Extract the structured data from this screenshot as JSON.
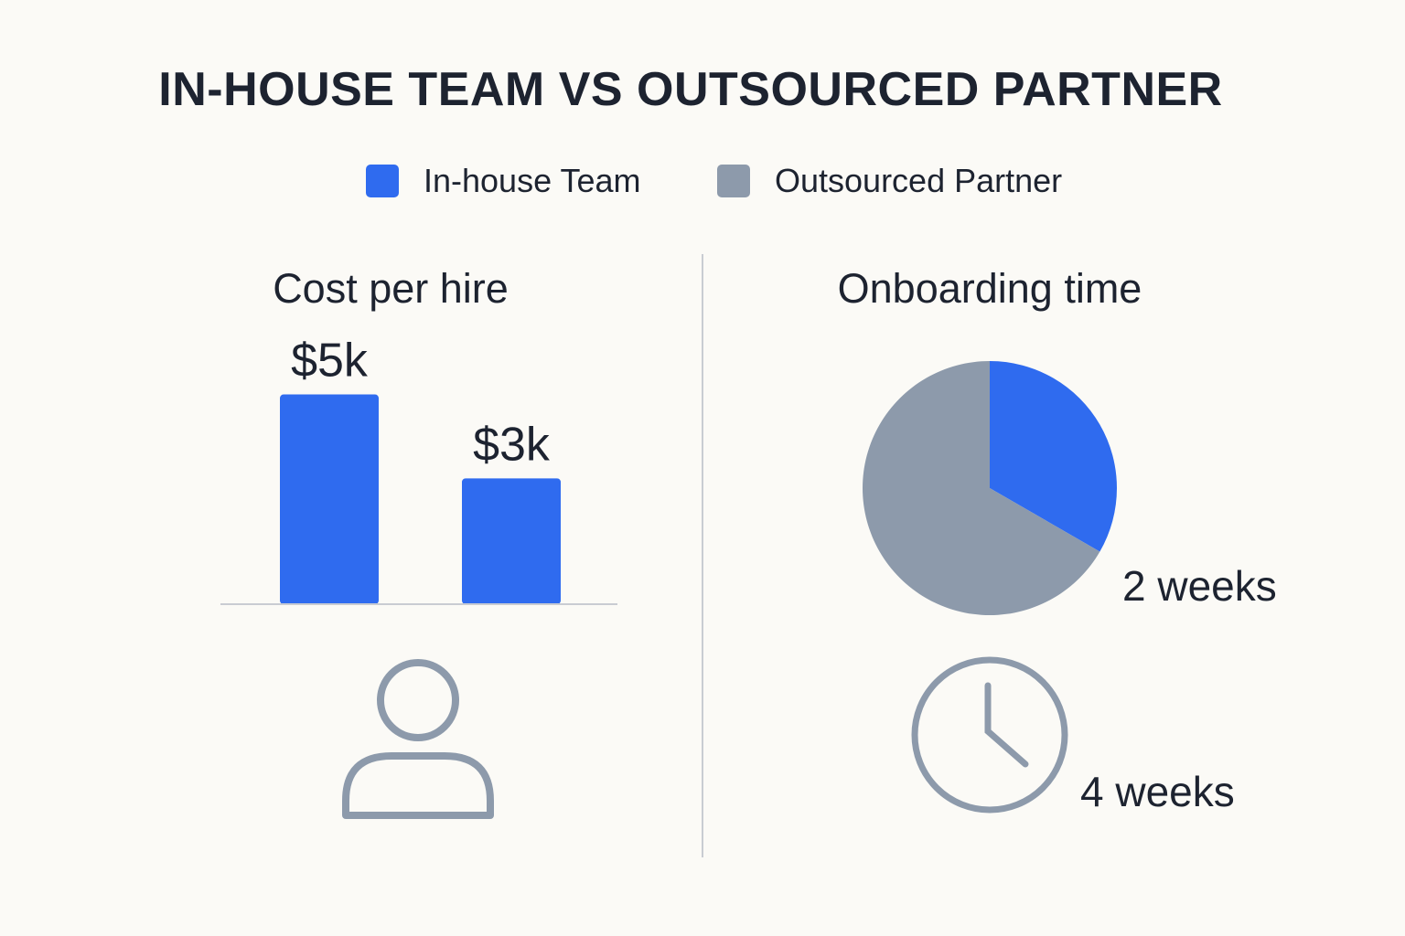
{
  "title": "IN-HOUSE TEAM VS OUTSOURCED PARTNER",
  "legend": [
    {
      "label": "In-house Team",
      "color": "#2f6bef"
    },
    {
      "label": "Outsourced Partner",
      "color": "#8d9aab"
    }
  ],
  "icons": [
    "person-icon",
    "clock-icon"
  ],
  "chart_data": [
    {
      "type": "bar",
      "title": "Cost per hire",
      "categories": [
        "",
        ""
      ],
      "values": [
        5,
        3
      ],
      "value_labels": [
        "$5k",
        "$3k"
      ],
      "unit": "k$",
      "bar_color": "#2f6bef",
      "ylim": [
        0,
        5.6
      ],
      "grid": false
    },
    {
      "type": "pie",
      "title": "Onboarding time",
      "slices": [
        {
          "value": 2,
          "label": "2 weeks",
          "color": "#2f6bef"
        },
        {
          "value": 4,
          "label": "4 weeks",
          "color": "#8d9aab"
        }
      ]
    }
  ]
}
